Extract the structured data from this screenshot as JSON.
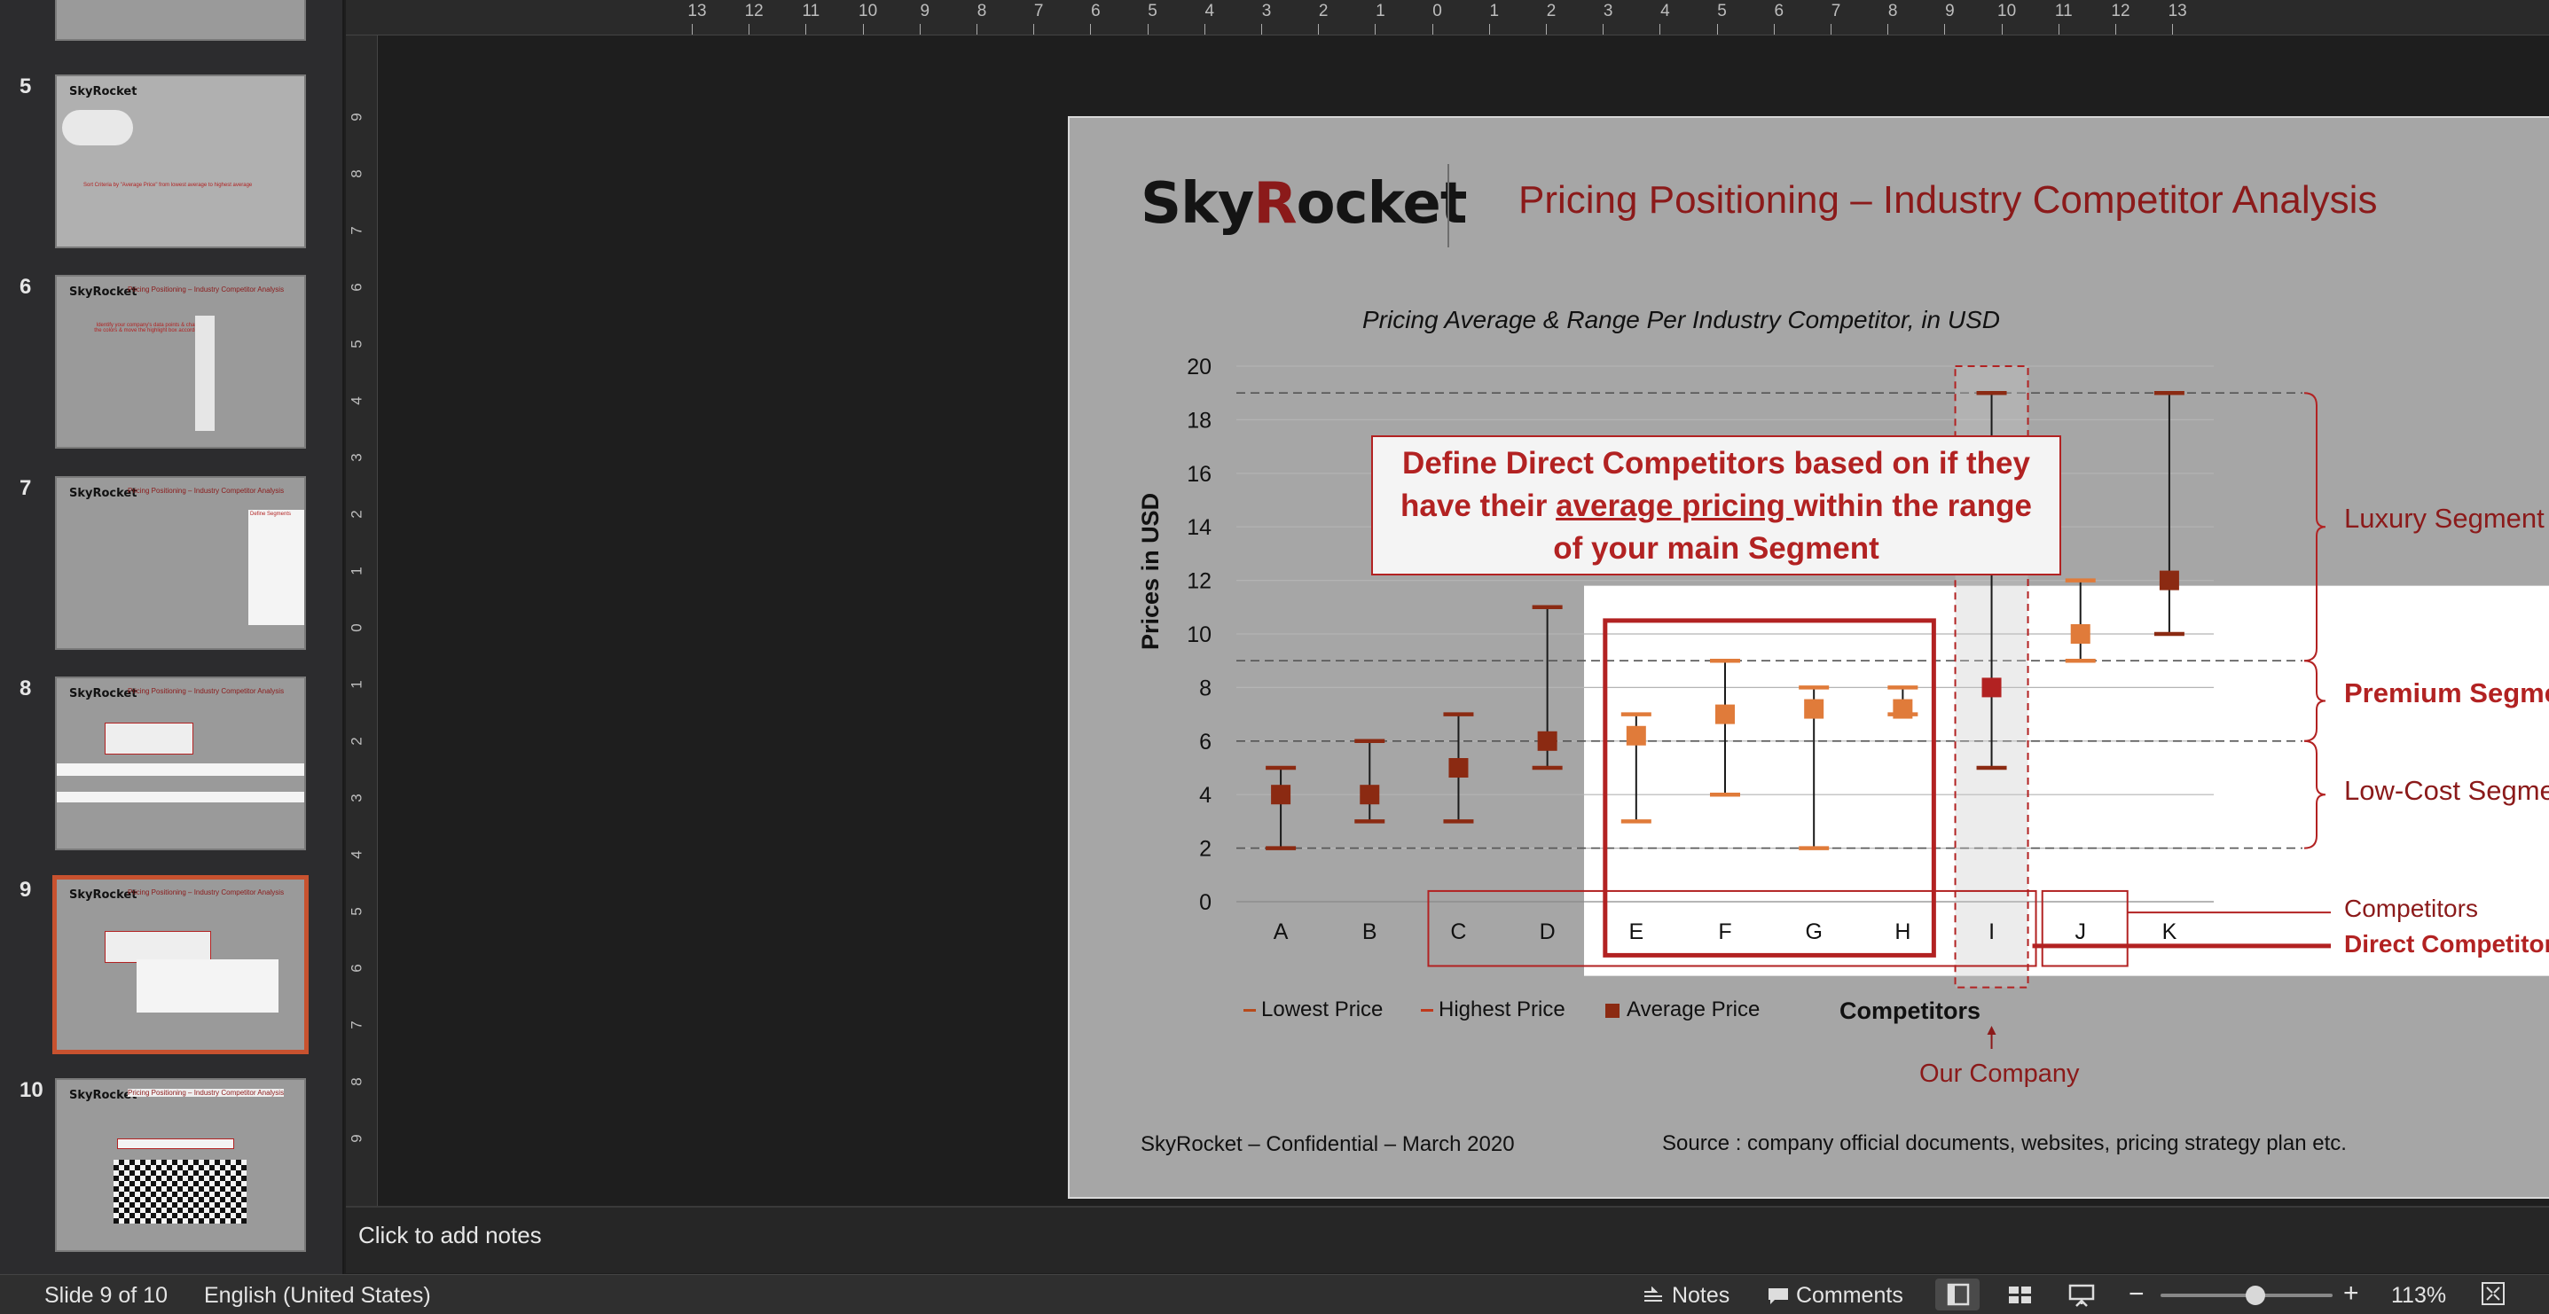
{
  "sidebar": {
    "slides": [
      {
        "number": "5",
        "caption": "Sort Criteria by \"Average Price\" from lowest average to highest average"
      },
      {
        "number": "6",
        "title": "Pricing Positioning – Industry Competitor Analysis",
        "caption": "Identify your company's data points & change the colors & move the highlight box accordingly"
      },
      {
        "number": "7",
        "title": "Pricing Positioning – Industry Competitor Analysis",
        "caption": "Define Segments"
      },
      {
        "number": "8",
        "title": "Pricing Positioning – Industry Competitor Analysis",
        "caption": "Define Competitors based on if they have their average pricing within the range of their Segment"
      },
      {
        "number": "9",
        "title": "Pricing Positioning – Industry Competitor Analysis",
        "caption": "Define Direct Competitors based on if they have their average pricing within the range of your main Segment"
      },
      {
        "number": "10",
        "title": "Pricing Positioning – Industry Competitor Analysis",
        "caption": "Change Your Titles & Sources + Delete + Logo"
      }
    ],
    "thumb_logo": "SkyRocket"
  },
  "ruler": {
    "top": [
      "13",
      "12",
      "11",
      "10",
      "9",
      "8",
      "7",
      "6",
      "5",
      "4",
      "3",
      "2",
      "1",
      "0",
      "1",
      "2",
      "3",
      "4",
      "5",
      "6",
      "7",
      "8",
      "9",
      "10",
      "11",
      "12",
      "13"
    ],
    "left": [
      "9",
      "8",
      "7",
      "6",
      "5",
      "4",
      "3",
      "2",
      "1",
      "0",
      "1",
      "2",
      "3",
      "4",
      "5",
      "6",
      "7",
      "8",
      "9"
    ]
  },
  "slide": {
    "logo": {
      "part1": "Sky",
      "part2": "R",
      "part3": "ocket"
    },
    "title": "Pricing Positioning – Industry Competitor Analysis",
    "chart_title": "Pricing Average & Range Per Industry Competitor, in USD",
    "callout": {
      "line1": "Define Direct Competitors based on if they",
      "line2a": "have their ",
      "line2u": "average pricing ",
      "line2b": "within the range",
      "line3": "of your main Segment"
    },
    "segments": {
      "luxury": "Luxury Segment",
      "premium": "Premium Segment",
      "lowcost": "Low-Cost Segment"
    },
    "competitors_label": "Competitors",
    "direct_competitors_label": "Direct Competitors",
    "our_company": "Our Company",
    "x_title": "Competitors",
    "y_title": "Prices in USD",
    "legend": {
      "low": "Lowest Price",
      "high": "Highest Price",
      "avg": "Average Price"
    },
    "footer": "SkyRocket – Confidential – March 2020",
    "source": "Source : company official documents, websites, pricing strategy plan etc."
  },
  "chart_data": {
    "type": "scatter",
    "title": "Pricing Average & Range Per Industry Competitor, in USD",
    "xlabel": "Competitors",
    "ylabel": "Prices in USD",
    "ylim": [
      0,
      20
    ],
    "yticks": [
      "0",
      "2",
      "4",
      "6",
      "8",
      "10",
      "12",
      "14",
      "16",
      "18",
      "20"
    ],
    "categories": [
      "A",
      "B",
      "C",
      "D",
      "E",
      "F",
      "G",
      "H",
      "I",
      "J",
      "K"
    ],
    "series": [
      {
        "name": "Lowest Price",
        "values": [
          2,
          3,
          3,
          5,
          3,
          4,
          2,
          7,
          5,
          9,
          10
        ]
      },
      {
        "name": "Highest Price",
        "values": [
          5,
          6,
          7,
          11,
          7,
          9,
          8,
          8,
          19,
          12,
          19
        ]
      },
      {
        "name": "Average Price",
        "values": [
          4,
          4,
          5,
          6,
          6.2,
          7,
          7.2,
          7.2,
          8,
          10,
          12
        ]
      }
    ],
    "segment_bounds": [
      2,
      6,
      9,
      19
    ],
    "legend_position": "bottom-left",
    "colors": {
      "dark": "#8b2a12",
      "light": "#e07b3a",
      "highlight": "#b22222"
    }
  },
  "notes": {
    "placeholder": "Click to add notes"
  },
  "statusbar": {
    "slide_info": "Slide 9 of 10",
    "language": "English (United States)",
    "notes_label": "Notes",
    "comments_label": "Comments",
    "zoom": "113%",
    "zoom_level": 0.55
  }
}
